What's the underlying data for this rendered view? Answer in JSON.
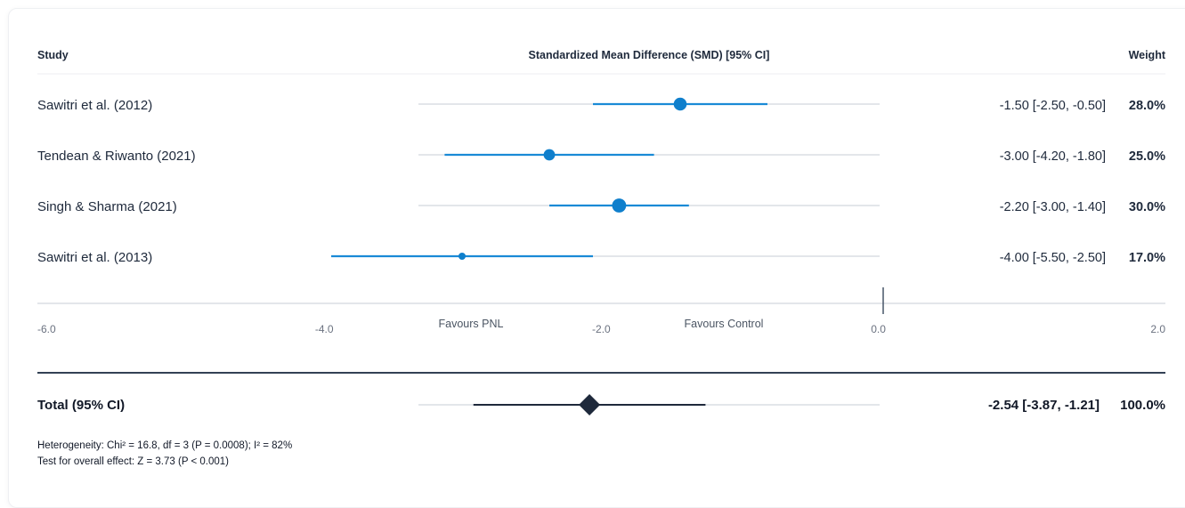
{
  "header": {
    "study": "Study",
    "effect": "Standardized Mean Difference (SMD) [95% CI]",
    "weight": "Weight"
  },
  "colors": {
    "marker": "#0f7fcc",
    "ci_line": "#1a8ad6",
    "track": "#e3e6ea",
    "total_diamond": "#1e293b"
  },
  "chart_data": {
    "type": "forest",
    "xlim": [
      -6.0,
      2.0
    ],
    "ticks": [
      -6.0,
      -4.0,
      -2.0,
      0.0,
      2.0
    ],
    "tick_labels": [
      "-6.0",
      "-4.0",
      "-2.0",
      "0.0",
      "2.0"
    ],
    "null_line": 0.0,
    "favours_left": "Favours PNL",
    "favours_right": "Favours Control",
    "studies": [
      {
        "name": "Sawitri et al. (2012)",
        "smd": -1.5,
        "lower": -2.5,
        "upper": -0.5,
        "weight": 28.0,
        "label": "-1.50 [-2.50, -0.50]",
        "weight_label": "28.0%"
      },
      {
        "name": "Tendean & Riwanto (2021)",
        "smd": -3.0,
        "lower": -4.2,
        "upper": -1.8,
        "weight": 25.0,
        "label": "-3.00 [-4.20, -1.80]",
        "weight_label": "25.0%"
      },
      {
        "name": "Singh & Sharma (2021)",
        "smd": -2.2,
        "lower": -3.0,
        "upper": -1.4,
        "weight": 30.0,
        "label": "-2.20 [-3.00, -1.40]",
        "weight_label": "30.0%"
      },
      {
        "name": "Sawitri et al. (2013)",
        "smd": -4.0,
        "lower": -5.5,
        "upper": -2.5,
        "weight": 17.0,
        "label": "-4.00 [-5.50, -2.50]",
        "weight_label": "17.0%"
      }
    ],
    "total": {
      "name": "Total (95% CI)",
      "smd": -2.54,
      "lower": -3.87,
      "upper": -1.21,
      "label": "-2.54 [-3.87, -1.21]",
      "weight_label": "100.0%"
    },
    "heterogeneity": "Heterogeneity: Chi² = 16.8, df = 3 (P = 0.0008); I² = 82%",
    "overall_effect": "Test for overall effect: Z = 3.73 (P < 0.001)"
  }
}
